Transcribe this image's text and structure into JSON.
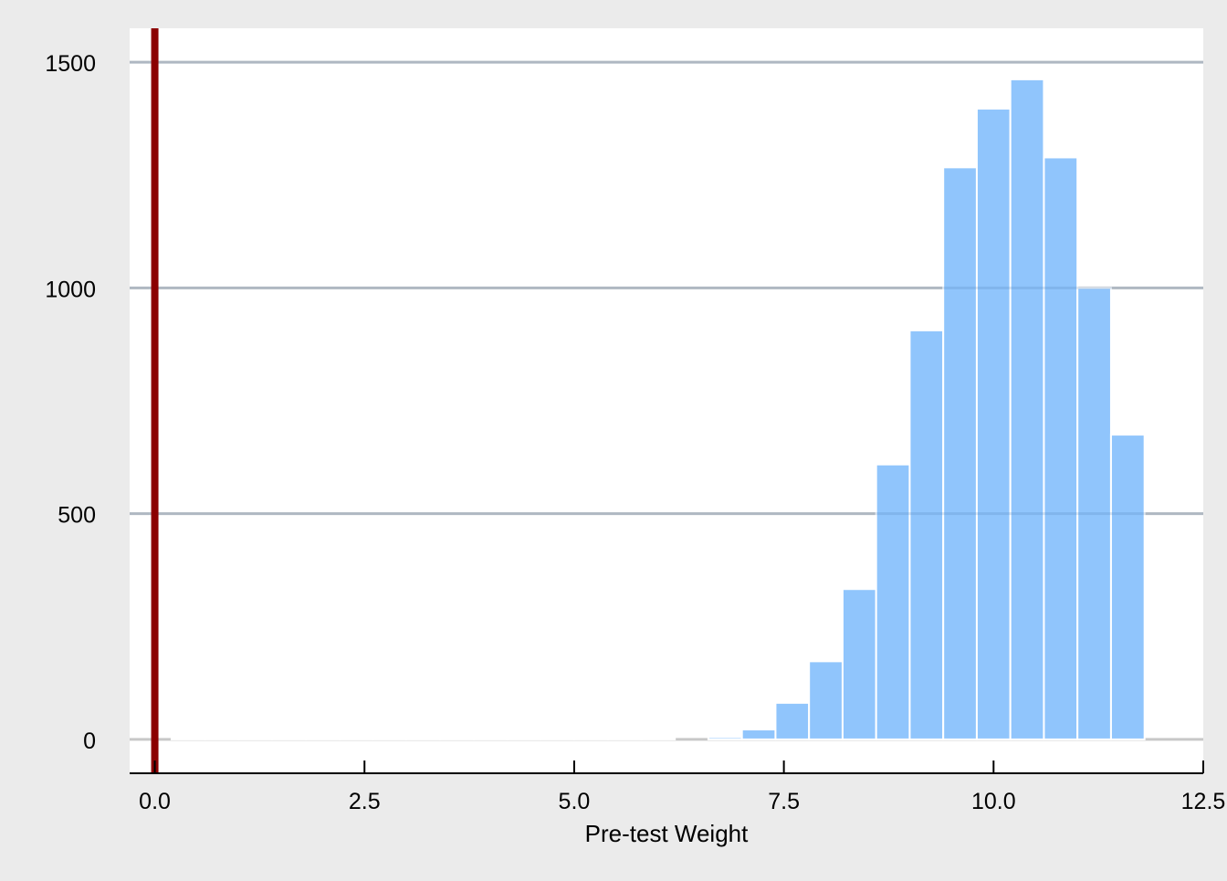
{
  "chart_data": {
    "type": "bar",
    "title": "",
    "xlabel": "Pre-test Weight",
    "ylabel": "",
    "xlim": [
      -0.3,
      12.5
    ],
    "ylim": [
      -75,
      1575
    ],
    "x_ticks": [
      0,
      2.5,
      5,
      7.5,
      10,
      12.5
    ],
    "x_tick_labels": [
      "0.0",
      "2.5",
      "5.0",
      "7.5",
      "10.0",
      "12.5"
    ],
    "y_ticks": [
      0,
      500,
      1000,
      1500
    ],
    "y_tick_labels": [
      "0",
      "500",
      "1000",
      "1500"
    ],
    "grid": "horizontal major",
    "legend": "none",
    "bin_width": 0.4,
    "bins": [
      {
        "start": 0.2,
        "count": 1
      },
      {
        "start": 0.6,
        "count": 1
      },
      {
        "start": 1.0,
        "count": 1
      },
      {
        "start": 1.4,
        "count": 1
      },
      {
        "start": 1.8,
        "count": 1
      },
      {
        "start": 2.2,
        "count": 1
      },
      {
        "start": 2.6,
        "count": 1
      },
      {
        "start": 3.0,
        "count": 1
      },
      {
        "start": 3.4,
        "count": 1
      },
      {
        "start": 3.8,
        "count": 1
      },
      {
        "start": 4.2,
        "count": 1
      },
      {
        "start": 4.6,
        "count": 1
      },
      {
        "start": 5.0,
        "count": 1
      },
      {
        "start": 5.4,
        "count": 1
      },
      {
        "start": 5.8,
        "count": 1
      },
      {
        "start": 6.2,
        "count": 0
      },
      {
        "start": 6.6,
        "count": 5
      },
      {
        "start": 7.0,
        "count": 22
      },
      {
        "start": 7.4,
        "count": 81
      },
      {
        "start": 7.8,
        "count": 173
      },
      {
        "start": 8.2,
        "count": 333
      },
      {
        "start": 8.6,
        "count": 609
      },
      {
        "start": 9.0,
        "count": 906
      },
      {
        "start": 9.4,
        "count": 1267
      },
      {
        "start": 9.8,
        "count": 1397
      },
      {
        "start": 10.2,
        "count": 1462
      },
      {
        "start": 10.6,
        "count": 1289
      },
      {
        "start": 11.0,
        "count": 1000
      },
      {
        "start": 11.4,
        "count": 675
      }
    ],
    "reference_line": {
      "x": 0,
      "color": "#8b0000"
    },
    "colors": {
      "bar_fill": "#90c5fc",
      "bar_edge": "#ffffff",
      "panel_background": "#ffffff",
      "outer_background": "#ebebeb",
      "gridline": "#c8c8c8",
      "axis": "#000000"
    }
  }
}
